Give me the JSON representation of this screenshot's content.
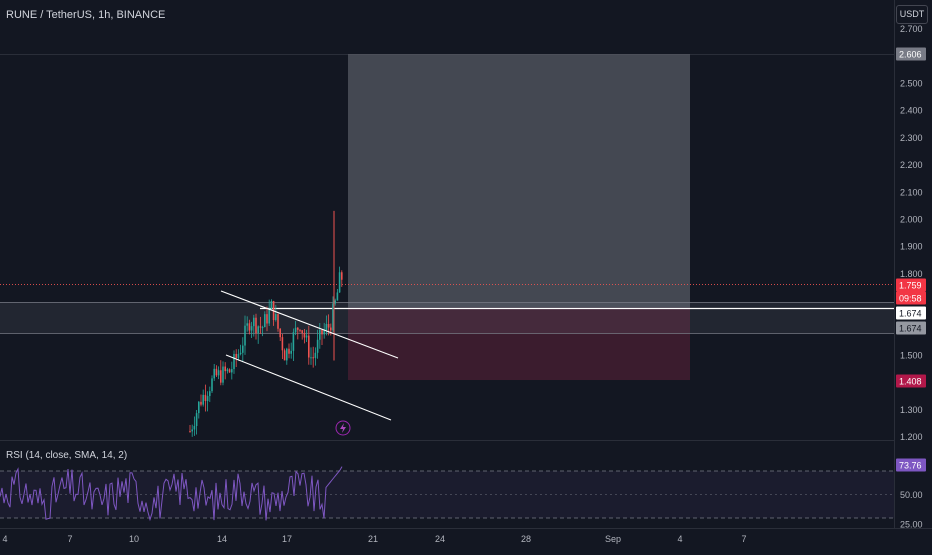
{
  "header": {
    "symbol_title": "RUNE / TetherUS, 1h, BINANCE",
    "currency_button": "USDT"
  },
  "colors": {
    "background": "#131722",
    "bull": "#26a69a",
    "bear": "#ef5350",
    "rsi_line": "#7e57c2",
    "rsi_band": "#7e57c2",
    "target_zone": "#9598a1",
    "stop_zone": "#4a1f33",
    "current_price_tag": "#f23645",
    "level_tag": "#e5e5e5",
    "stop_tag": "#b2184a"
  },
  "price_axis": {
    "ticks": [
      "2.700",
      "2.500",
      "2.400",
      "2.300",
      "2.200",
      "2.100",
      "2.000",
      "1.900",
      "1.800",
      "1.500",
      "1.400",
      "1.300",
      "1.200"
    ],
    "tags": {
      "target_price": "2.606",
      "current_price": "1.759",
      "countdown": "09:58",
      "level_line": "1.674",
      "level_zone": "1.674",
      "stop_price": "1.408"
    }
  },
  "rsi": {
    "title": "RSI (14, close, SMA, 14, 2)",
    "value": "73.76",
    "ticks": [
      "50.00",
      "25.00"
    ]
  },
  "time_axis": {
    "labels": [
      "4",
      "7",
      "10",
      "14",
      "17",
      "21",
      "24",
      "28",
      "Sep",
      "4",
      "7"
    ]
  },
  "chart_data": {
    "type": "candlestick",
    "title": "RUNE / TetherUS, 1h, BINANCE",
    "ylim": [
      1.2,
      2.72
    ],
    "trade_setup": {
      "entry": 1.674,
      "target": 2.606,
      "stop": 1.408
    },
    "current_price": 1.759,
    "spike_high": 2.03,
    "resistance_zone": [
      1.6,
      1.74
    ],
    "channel_upper": {
      "from": {
        "label": "14",
        "price": 1.79
      },
      "to": {
        "label": "21",
        "price": 1.49
      }
    },
    "channel_lower": {
      "from": {
        "label": "14",
        "price": 1.5
      },
      "to": {
        "label": "21",
        "price": 1.27
      }
    },
    "rsi_levels": [
      70,
      50,
      30
    ],
    "rsi_last": 73.76
  }
}
